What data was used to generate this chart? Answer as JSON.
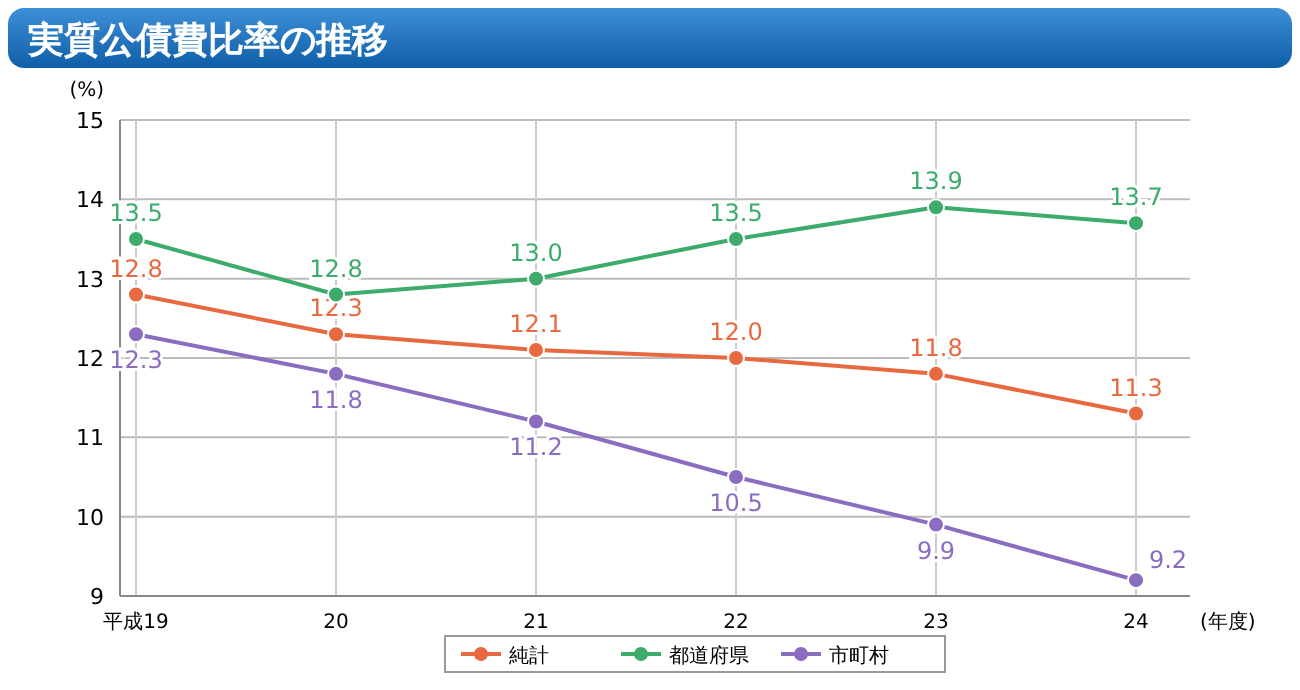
{
  "chart_data": {
    "type": "line",
    "title": "実質公債費比率の推移",
    "ylabel": "(%)",
    "xlabel": "(年度)",
    "categories": [
      "平成19",
      "20",
      "21",
      "22",
      "23",
      "24"
    ],
    "series": [
      {
        "name": "純計",
        "color": "#e8693f",
        "values": [
          12.8,
          12.3,
          12.1,
          12.0,
          11.8,
          11.3
        ],
        "value_labels": [
          "12.8",
          "12.3",
          "12.1",
          "12.0",
          "11.8",
          "11.3"
        ]
      },
      {
        "name": "都道府県",
        "color": "#3cab6b",
        "values": [
          13.5,
          12.8,
          13.0,
          13.5,
          13.9,
          13.7
        ],
        "value_labels": [
          "13.5",
          "12.8",
          "13.0",
          "13.5",
          "13.9",
          "13.7"
        ]
      },
      {
        "name": "市町村",
        "color": "#8a6cc0",
        "values": [
          12.3,
          11.8,
          11.2,
          10.5,
          9.9,
          9.2
        ],
        "value_labels": [
          "12.3",
          "11.8",
          "11.2",
          "10.5",
          "9.9",
          "9.2"
        ]
      }
    ],
    "ylim": [
      9,
      15
    ],
    "yticks": [
      9,
      10,
      11,
      12,
      13,
      14,
      15
    ],
    "grid": true,
    "legend": "bottom",
    "marker": "circle",
    "line_style": "solid"
  }
}
